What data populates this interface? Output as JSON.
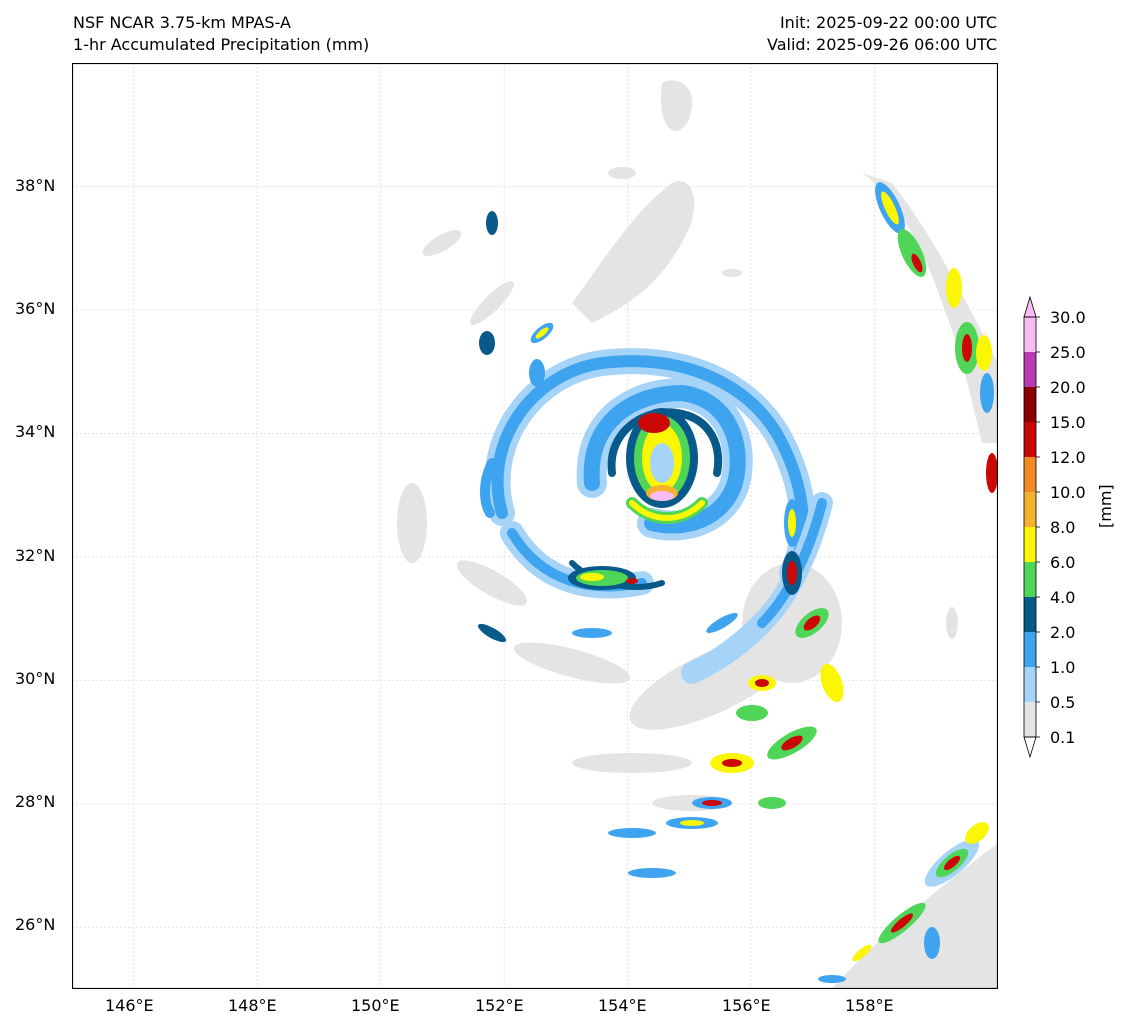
{
  "header": {
    "left_line1": "NSF NCAR 3.75-km MPAS-A",
    "left_line2": "1-hr Accumulated Precipitation (mm)",
    "right_line1": "Init: 2025-09-22 00:00 UTC",
    "right_line2": "Valid: 2025-09-26 06:00 UTC"
  },
  "map": {
    "lon_range": [
      145,
      160
    ],
    "lat_range": [
      25,
      40
    ],
    "gridlines": true,
    "lon_ticks": [
      "146°E",
      "148°E",
      "150°E",
      "152°E",
      "154°E",
      "156°E",
      "158°E"
    ],
    "lat_ticks": [
      "38°N",
      "36°N",
      "34°N",
      "32°N",
      "30°N",
      "28°N",
      "26°N"
    ],
    "storm_center": {
      "lon": 154.1,
      "lat": 33.2
    }
  },
  "colorbar": {
    "unit_label": "[mm]",
    "levels": [
      "0.1",
      "0.5",
      "1.0",
      "2.0",
      "4.0",
      "6.0",
      "8.0",
      "10.0",
      "12.0",
      "15.0",
      "20.0",
      "25.0",
      "30.0"
    ],
    "colors": [
      "#e4e4e4",
      "#a6d4f9",
      "#3fa4f0",
      "#085a8a",
      "#4fd659",
      "#fbf704",
      "#f4b22e",
      "#ef8a24",
      "#cb0707",
      "#8b0000",
      "#b63bb4",
      "#f9bcf4"
    ]
  }
}
